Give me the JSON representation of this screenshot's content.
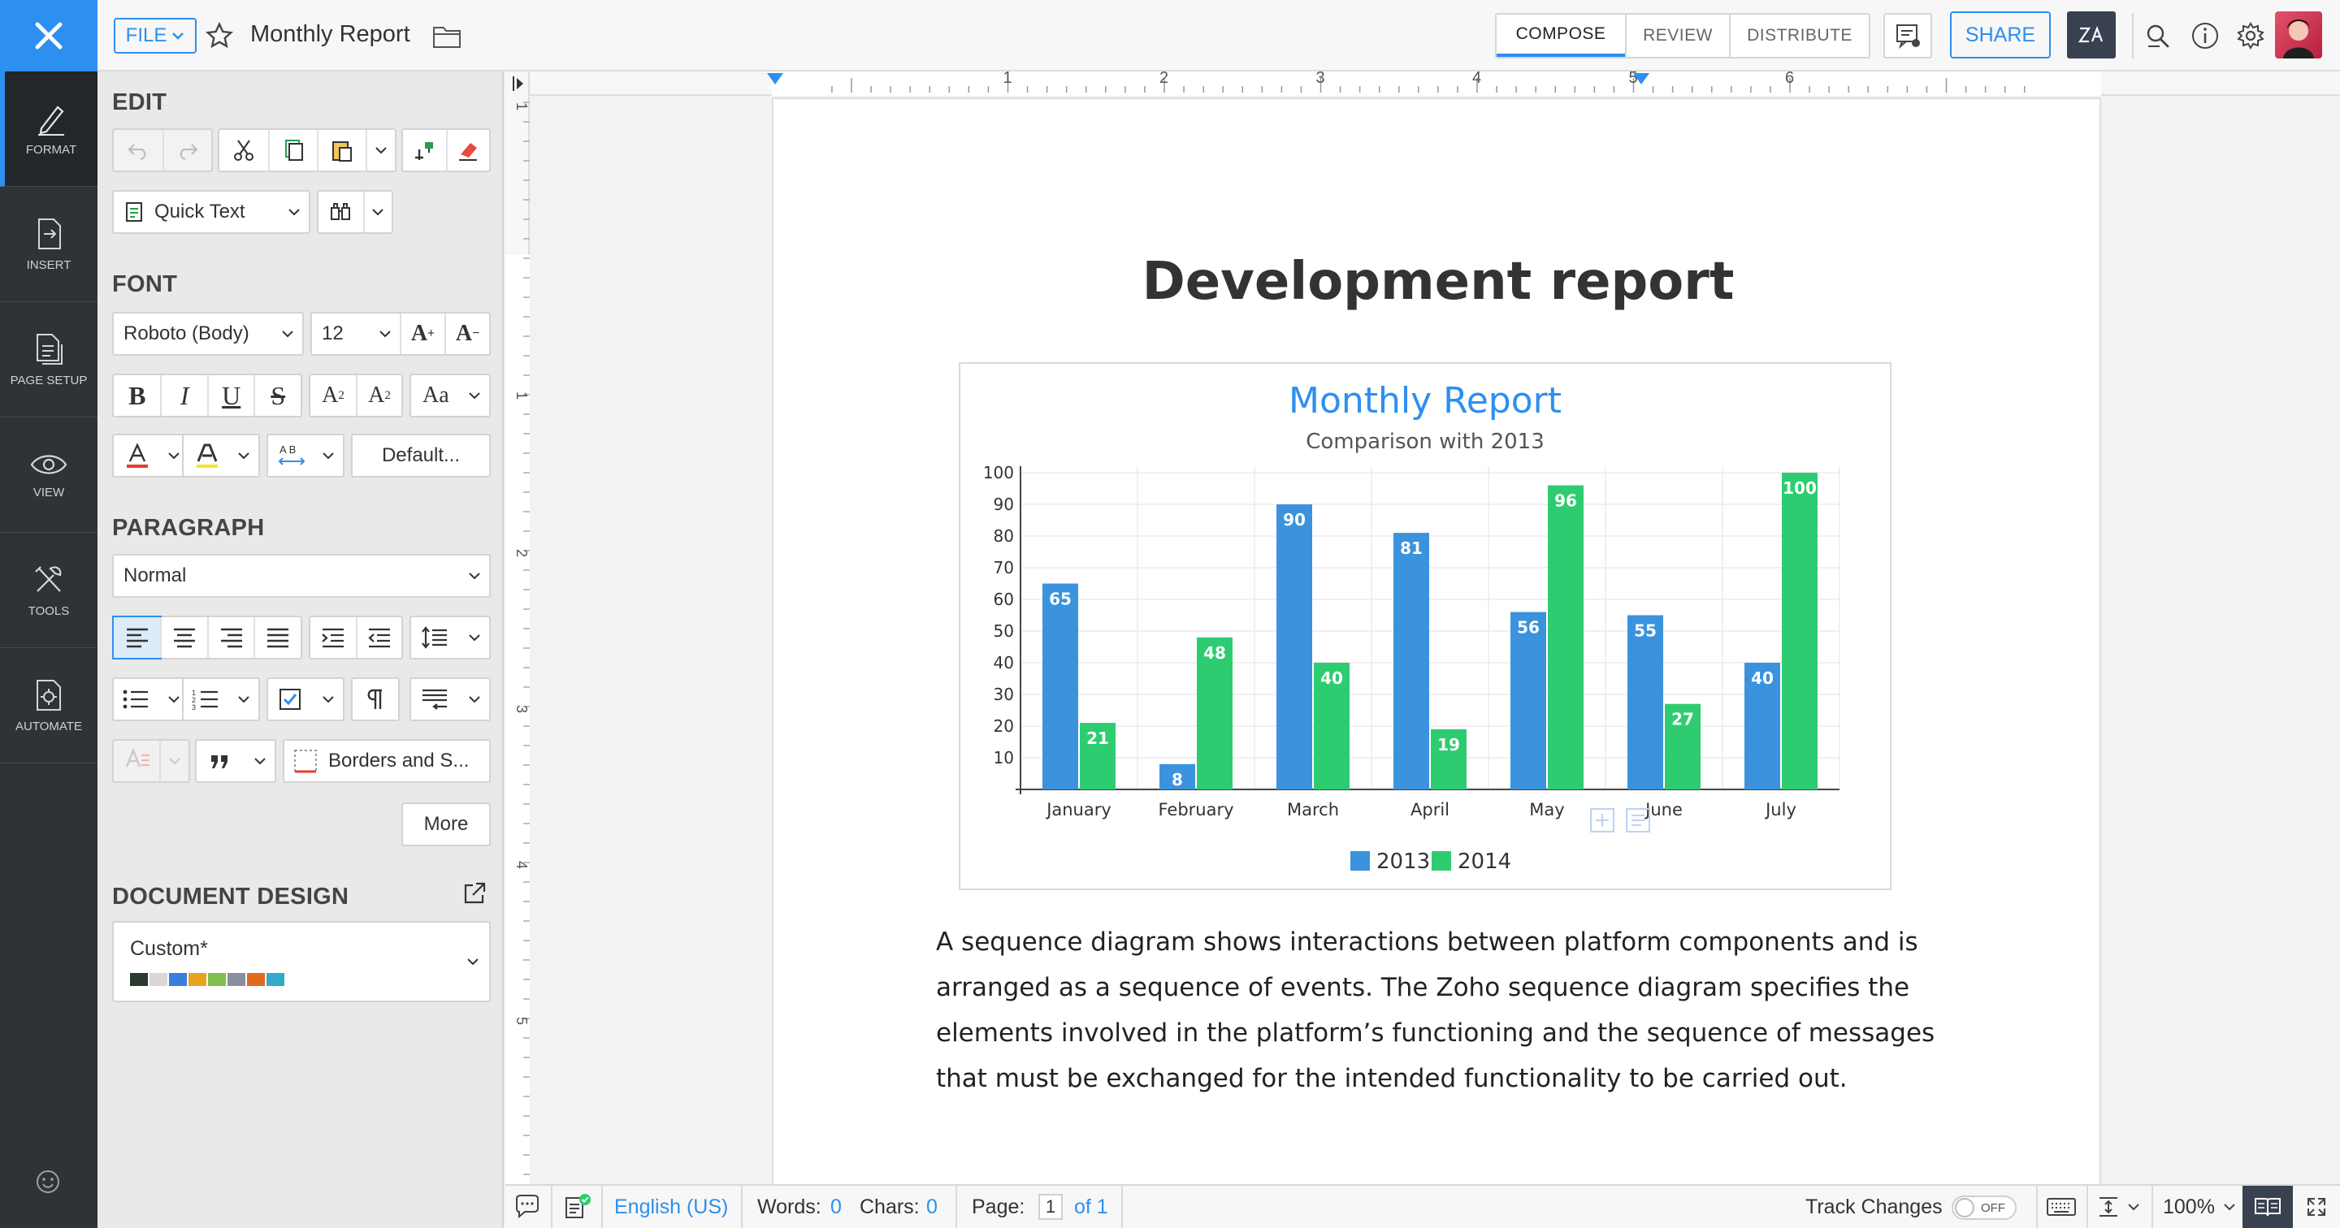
{
  "header": {
    "file_label": "FILE",
    "doc_title": "Monthly Report",
    "modes": [
      "COMPOSE",
      "REVIEW",
      "DISTRIBUTE"
    ],
    "active_mode": "COMPOSE",
    "share_label": "SHARE"
  },
  "rail": {
    "items": [
      {
        "label": "FORMAT",
        "icon": "pen-icon"
      },
      {
        "label": "INSERT",
        "icon": "insert-doc-icon"
      },
      {
        "label": "PAGE SETUP",
        "icon": "page-setup-icon"
      },
      {
        "label": "VIEW",
        "icon": "eye-icon"
      },
      {
        "label": "TOOLS",
        "icon": "tools-icon"
      },
      {
        "label": "AUTOMATE",
        "icon": "automate-icon"
      }
    ]
  },
  "panel": {
    "edit_title": "EDIT",
    "quick_text": "Quick Text",
    "font_title": "FONT",
    "font_family": "Roboto  (Body)",
    "font_size": "12",
    "default_label": "Default...",
    "paragraph_title": "PARAGRAPH",
    "paragraph_style": "Normal",
    "borders_label": "Borders and S...",
    "more_label": "More",
    "design_title": "DOCUMENT DESIGN",
    "design_value": "Custom*",
    "design_swatches": [
      "#2b3a2f",
      "#d8d8d8",
      "#3b7ddd",
      "#e8a21e",
      "#7fbf4d",
      "#8a8fa0",
      "#e06b1f",
      "#35a9c9"
    ]
  },
  "document": {
    "heading": "Development report",
    "paragraph": "A sequence diagram shows interactions between platform components and is arranged as a sequence of events. The Zoho sequence diagram specifies the elements involved in the platform’s functioning and the sequence of messages that must be exchanged for the intended functionality to be carried out."
  },
  "chart_data": {
    "type": "bar",
    "title": "Monthly Report",
    "subtitle": "Comparison with 2013",
    "categories": [
      "January",
      "February",
      "March",
      "April",
      "May",
      "June",
      "July"
    ],
    "series": [
      {
        "name": "2013",
        "values": [
          65,
          8,
          90,
          81,
          56,
          55,
          40
        ],
        "color": "#3a93dc"
      },
      {
        "name": "2014",
        "values": [
          21,
          48,
          40,
          19,
          96,
          27,
          100
        ],
        "color": "#2ecc71"
      }
    ],
    "ylim": [
      0,
      100
    ],
    "yticks": [
      10,
      20,
      30,
      40,
      50,
      60,
      70,
      80,
      90,
      100
    ],
    "grid": true,
    "legend": "bottom-center"
  },
  "ruler": {
    "h_labels": [
      "1",
      "2",
      "3",
      "4",
      "5",
      "6"
    ],
    "v_labels": [
      "1",
      "1",
      "2",
      "3",
      "4",
      "5"
    ]
  },
  "status": {
    "language": "English (US)",
    "words_label": "Words:",
    "words": "0",
    "chars_label": "Chars:",
    "chars": "0",
    "page_label": "Page:",
    "page": "1",
    "of_pages": "of 1",
    "track_label": "Track Changes",
    "track_state": "OFF",
    "zoom": "100%"
  }
}
